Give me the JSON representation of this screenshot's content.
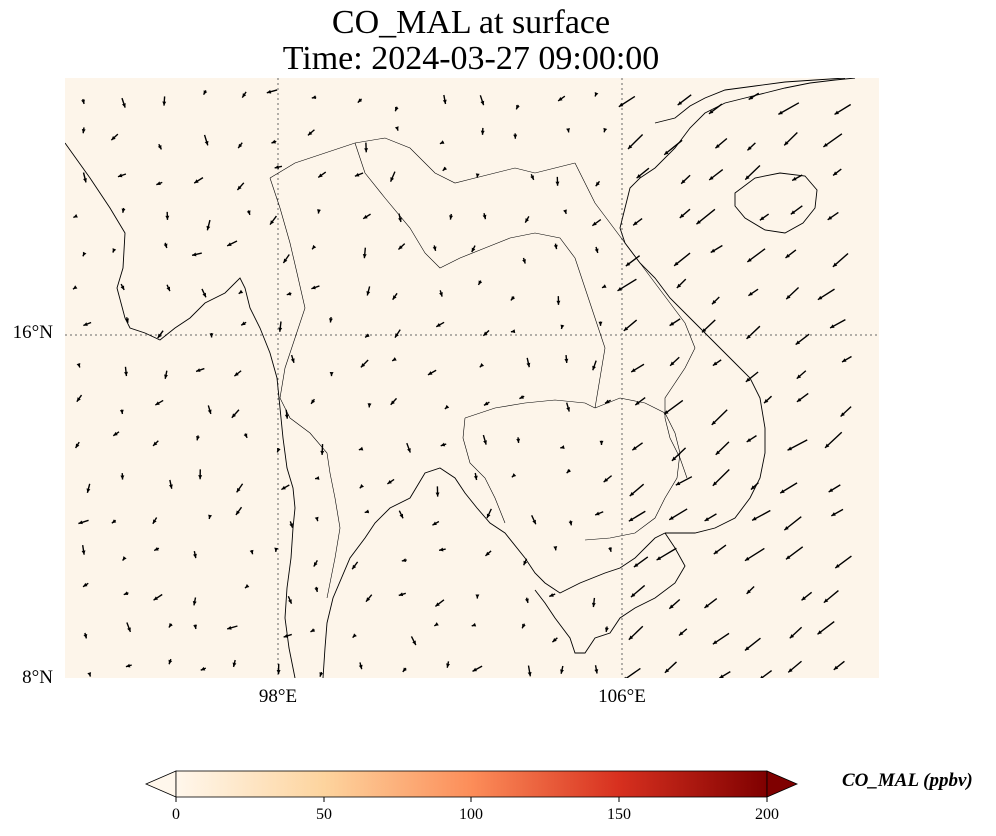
{
  "title": {
    "line1": "CO_MAL at surface",
    "line2": "Time: 2024-03-27 09:00:00"
  },
  "axes": {
    "lat_labels": [
      "16°N",
      "8°N"
    ],
    "lon_labels": [
      "98°E",
      "106°E"
    ]
  },
  "colorbar": {
    "label": "CO_MAL (ppbv)",
    "ticks": [
      "0",
      "50",
      "100",
      "150",
      "200"
    ],
    "colormap": "OrRd",
    "stops": [
      "#fff7ec",
      "#fdd49e",
      "#fc8d59",
      "#d7301f",
      "#7f0000"
    ],
    "extend": "both"
  },
  "map": {
    "field_color": "#fdf5ea",
    "coastline_color": "#000000",
    "gridline_color": "#666666"
  }
}
